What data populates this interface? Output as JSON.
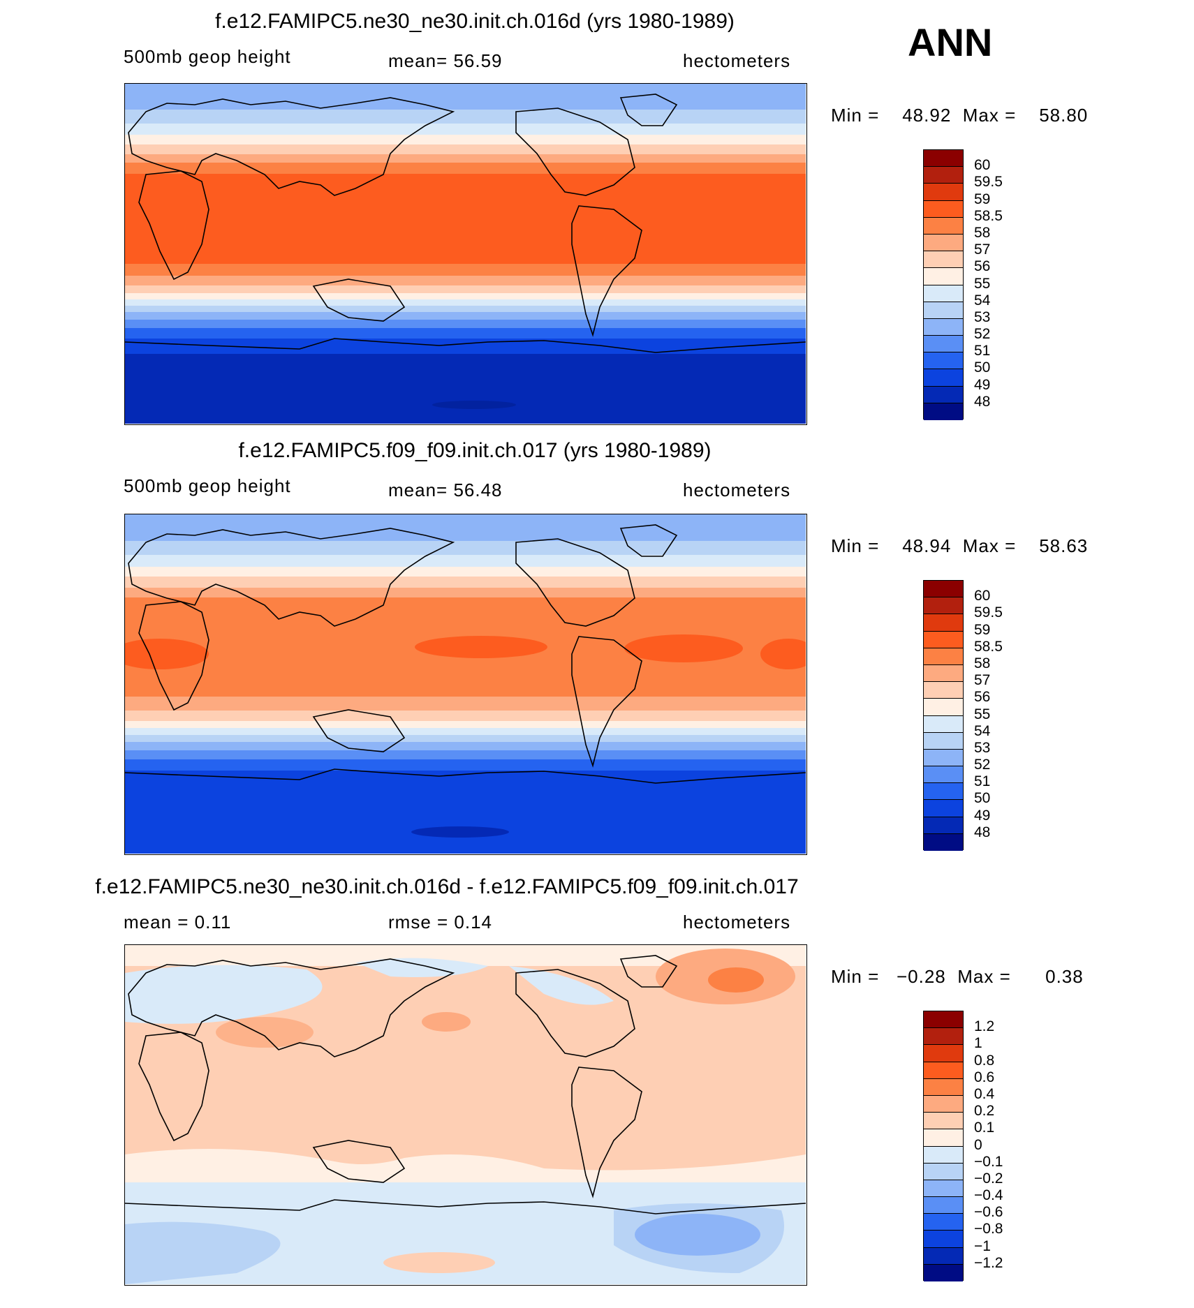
{
  "season": "ANN",
  "panels": [
    {
      "title": "f.e12.FAMIPC5.ne30_ne30.init.ch.016d (yrs 1980-1989)",
      "left_label": "500mb geop height",
      "center_label": "mean=   56.59",
      "units": "hectometers",
      "min_label": "Min =",
      "min_value": "48.92",
      "max_label": "Max =",
      "max_value": "58.80",
      "levels": [
        "60",
        "59.5",
        "59",
        "58.5",
        "58",
        "57",
        "56",
        "55",
        "54",
        "53",
        "52",
        "51",
        "50",
        "49",
        "48"
      ],
      "colors": [
        "#8b0000",
        "#b2200e",
        "#e03a0e",
        "#fd5c1f",
        "#fc8144",
        "#fdaa80",
        "#fecfb4",
        "#fff0e4",
        "#d9eaf9",
        "#b8d3f5",
        "#8db4f7",
        "#5a8ff5",
        "#2563f0",
        "#0c43df",
        "#0429b5",
        "#000c84"
      ]
    },
    {
      "title": "f.e12.FAMIPC5.f09_f09.init.ch.017 (yrs 1980-1989)",
      "left_label": "500mb geop height",
      "center_label": "mean=   56.48",
      "units": "hectometers",
      "min_label": "Min =",
      "min_value": "48.94",
      "max_label": "Max =",
      "max_value": "58.63",
      "levels": [
        "60",
        "59.5",
        "59",
        "58.5",
        "58",
        "57",
        "56",
        "55",
        "54",
        "53",
        "52",
        "51",
        "50",
        "49",
        "48"
      ],
      "colors": [
        "#8b0000",
        "#b2200e",
        "#e03a0e",
        "#fd5c1f",
        "#fc8144",
        "#fdaa80",
        "#fecfb4",
        "#fff0e4",
        "#d9eaf9",
        "#b8d3f5",
        "#8db4f7",
        "#5a8ff5",
        "#2563f0",
        "#0c43df",
        "#0429b5",
        "#000c84"
      ]
    },
    {
      "title": "f.e12.FAMIPC5.ne30_ne30.init.ch.016d - f.e12.FAMIPC5.f09_f09.init.ch.017",
      "left_label": "mean =     0.11",
      "center_label": "rmse =     0.14",
      "units": "hectometers",
      "min_label": "Min =",
      "min_value": "−0.28",
      "max_label": "Max =",
      "max_value": "0.38",
      "levels": [
        "1.2",
        "1",
        "0.8",
        "0.6",
        "0.4",
        "0.2",
        "0.1",
        "0",
        "−0.1",
        "−0.2",
        "−0.4",
        "−0.6",
        "−0.8",
        "−1",
        "−1.2"
      ],
      "colors": [
        "#8b0000",
        "#b2200e",
        "#e03a0e",
        "#fd5c1f",
        "#fc8144",
        "#fdaa80",
        "#fecfb4",
        "#fff0e4",
        "#d9eaf9",
        "#b8d3f5",
        "#8db4f7",
        "#5a8ff5",
        "#2563f0",
        "#0c43df",
        "#0429b5",
        "#000c84"
      ]
    }
  ]
}
